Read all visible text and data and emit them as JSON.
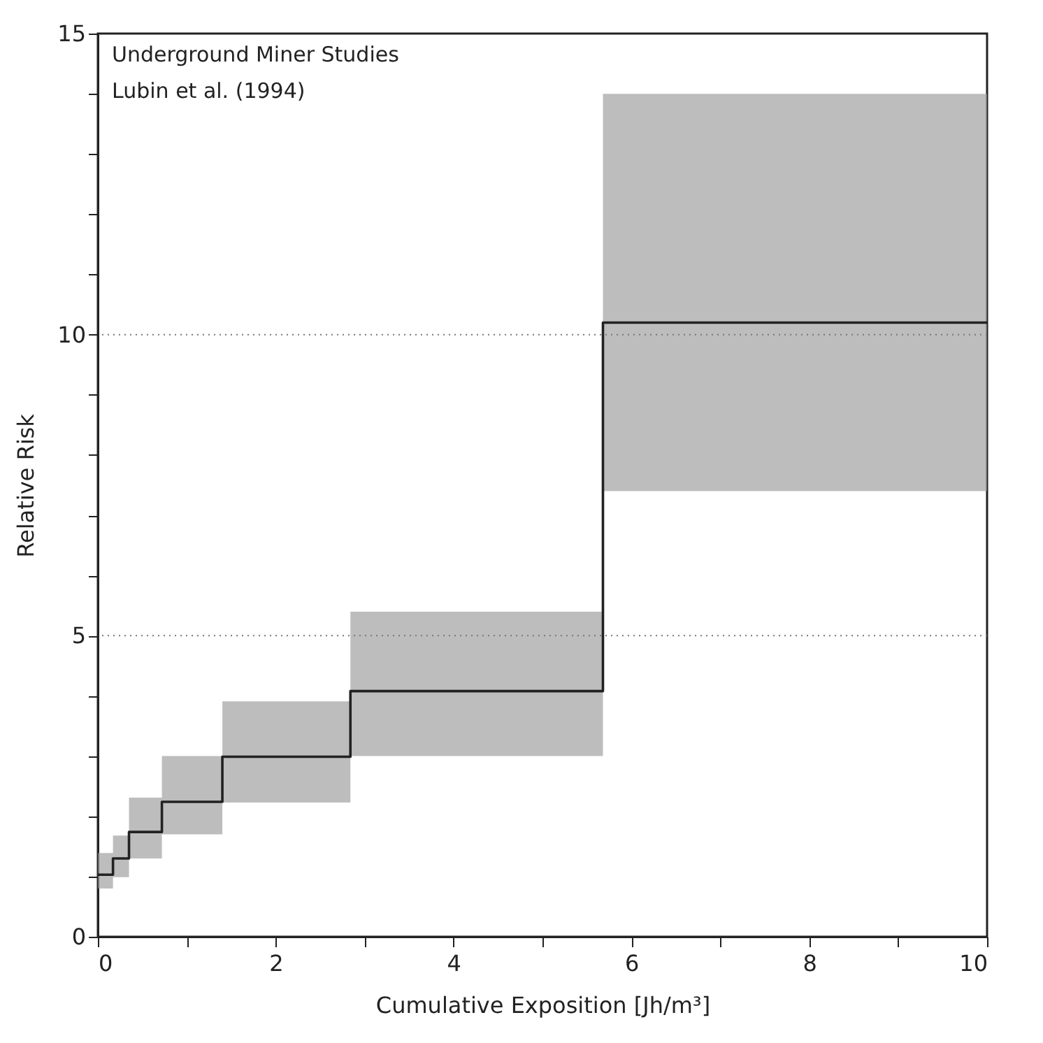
{
  "chart_data": {
    "type": "step",
    "xlabel": "Cumulative Exposition [Jh/m³]",
    "ylabel": "Relative Risk",
    "annotations": [
      "Underground Miner Studies",
      "Lubin et al. (1994)"
    ],
    "series": [
      {
        "color": "#222222",
        "x": [
          0,
          0.17,
          0.35,
          0.72,
          1.4,
          2.84,
          5.68,
          10
        ],
        "values": [
          1.03,
          1.3,
          1.74,
          2.24,
          2.99,
          4.08,
          10.2,
          10.2
        ],
        "lower": [
          0.8,
          0.99,
          1.3,
          1.7,
          2.23,
          3.0,
          7.4,
          7.4
        ],
        "upper": [
          1.39,
          1.68,
          2.31,
          3.0,
          3.91,
          5.4,
          14.0,
          14.0
        ]
      }
    ],
    "xlim": [
      0,
      10
    ],
    "ylim": [
      0,
      15
    ],
    "xticks": [
      0,
      {
        "value": 1,
        "label": null
      },
      2,
      {
        "value": 3,
        "label": null
      },
      4,
      {
        "value": 5,
        "label": null
      },
      6,
      {
        "value": 7,
        "label": null
      },
      8,
      {
        "value": 9,
        "label": null
      },
      10
    ],
    "yticks": [
      0,
      {
        "value": 1,
        "label": null
      },
      {
        "value": 2,
        "label": null
      },
      {
        "value": 3,
        "label": null
      },
      {
        "value": 4,
        "label": null
      },
      5,
      {
        "value": 6,
        "label": null
      },
      {
        "value": 7,
        "label": null
      },
      {
        "value": 8,
        "label": null
      },
      {
        "value": 9,
        "label": null
      },
      10,
      {
        "value": 11,
        "label": null
      },
      {
        "value": 12,
        "label": null
      },
      {
        "value": 13,
        "label": null
      },
      {
        "value": 14,
        "label": null
      },
      15
    ],
    "ref_lines": [
      {
        "axis": "y",
        "value": 5,
        "color": "#777777",
        "line_style": "dotted"
      },
      {
        "axis": "y",
        "value": 10,
        "color": "#777777",
        "line_style": "dotted"
      }
    ],
    "grid": false,
    "line_style": "solid"
  }
}
